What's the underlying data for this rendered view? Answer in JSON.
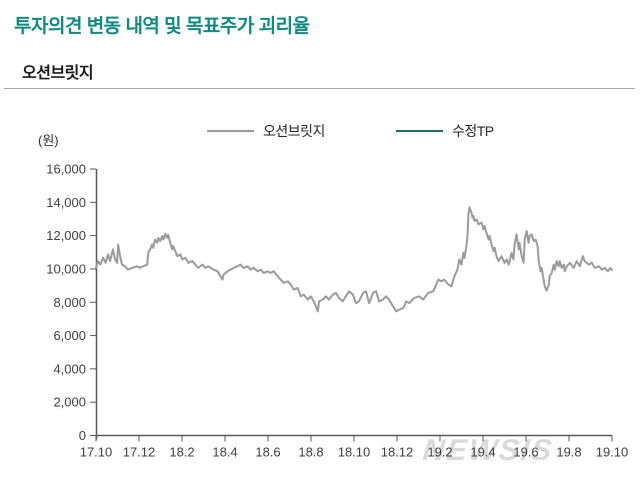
{
  "page": {
    "title": "투자의견 변동 내역 및 목표주가 괴리율",
    "subtitle": "오션브릿지",
    "watermark": "NEWSIS"
  },
  "colors": {
    "title_teal": "#0e8a80",
    "stock_line": "#9b9b9b",
    "tp_line": "#1e6f66",
    "axis": "#595959",
    "tick_label": "#404040",
    "watermark": "#dadada",
    "divider": "#a6a6a6"
  },
  "chart_data": {
    "type": "line",
    "unit_label": "(원)",
    "legend_position": "top",
    "grid": false,
    "legend": [
      {
        "label": "오션브릿지",
        "color": "#9b9b9b"
      },
      {
        "label": "수정TP",
        "color": "#1e6f66"
      }
    ],
    "y_ticks": [
      0,
      2000,
      4000,
      6000,
      8000,
      10000,
      12000,
      14000,
      16000
    ],
    "ylim": [
      0,
      16000
    ],
    "x_tick_labels": [
      "17.10",
      "17.12",
      "18.2",
      "18.4",
      "18.6",
      "18.8",
      "18.10",
      "18.12",
      "19.2",
      "19.4",
      "19.6",
      "19.8",
      "19.10"
    ],
    "x_months_span": 24,
    "series": [
      {
        "name": "오션브릿지",
        "color": "#9b9b9b",
        "points": [
          [
            0.0,
            10060
          ],
          [
            0.09,
            10470
          ],
          [
            0.2,
            10260
          ],
          [
            0.33,
            10670
          ],
          [
            0.45,
            10370
          ],
          [
            0.56,
            10870
          ],
          [
            0.65,
            10470
          ],
          [
            0.79,
            11170
          ],
          [
            0.89,
            10570
          ],
          [
            0.98,
            10370
          ],
          [
            1.03,
            11470
          ],
          [
            1.12,
            10770
          ],
          [
            1.21,
            10260
          ],
          [
            1.35,
            10160
          ],
          [
            1.49,
            9960
          ],
          [
            1.68,
            10060
          ],
          [
            1.91,
            10160
          ],
          [
            2.05,
            10060
          ],
          [
            2.19,
            10160
          ],
          [
            2.38,
            10260
          ],
          [
            2.43,
            10970
          ],
          [
            2.52,
            11170
          ],
          [
            2.61,
            11470
          ],
          [
            2.66,
            11270
          ],
          [
            2.75,
            11770
          ],
          [
            2.85,
            11570
          ],
          [
            2.9,
            11870
          ],
          [
            2.99,
            11670
          ],
          [
            3.08,
            11980
          ],
          [
            3.13,
            11770
          ],
          [
            3.22,
            12100
          ],
          [
            3.31,
            11870
          ],
          [
            3.36,
            12050
          ],
          [
            3.45,
            11570
          ],
          [
            3.55,
            11170
          ],
          [
            3.59,
            11370
          ],
          [
            3.69,
            11070
          ],
          [
            3.78,
            10770
          ],
          [
            3.92,
            10870
          ],
          [
            4.02,
            10570
          ],
          [
            4.16,
            10670
          ],
          [
            4.29,
            10370
          ],
          [
            4.48,
            10470
          ],
          [
            4.62,
            10260
          ],
          [
            4.76,
            10060
          ],
          [
            4.95,
            10260
          ],
          [
            5.09,
            10060
          ],
          [
            5.23,
            10160
          ],
          [
            5.46,
            9960
          ],
          [
            5.65,
            9860
          ],
          [
            5.79,
            9560
          ],
          [
            5.88,
            9360
          ],
          [
            5.93,
            9660
          ],
          [
            6.12,
            9860
          ],
          [
            6.26,
            9960
          ],
          [
            6.4,
            10060
          ],
          [
            6.58,
            10160
          ],
          [
            6.72,
            10260
          ],
          [
            6.86,
            10060
          ],
          [
            7.05,
            10160
          ],
          [
            7.19,
            9960
          ],
          [
            7.33,
            10060
          ],
          [
            7.52,
            9860
          ],
          [
            7.66,
            9960
          ],
          [
            7.8,
            9760
          ],
          [
            7.98,
            9860
          ],
          [
            8.12,
            9760
          ],
          [
            8.26,
            9860
          ],
          [
            8.45,
            9560
          ],
          [
            8.59,
            9360
          ],
          [
            8.73,
            9160
          ],
          [
            8.92,
            9260
          ],
          [
            9.06,
            9060
          ],
          [
            9.2,
            8760
          ],
          [
            9.38,
            8860
          ],
          [
            9.52,
            8360
          ],
          [
            9.66,
            8460
          ],
          [
            9.85,
            8160
          ],
          [
            9.99,
            8360
          ],
          [
            10.13,
            8050
          ],
          [
            10.32,
            7450
          ],
          [
            10.37,
            8050
          ],
          [
            10.55,
            8160
          ],
          [
            10.69,
            8360
          ],
          [
            10.83,
            8160
          ],
          [
            11.02,
            8460
          ],
          [
            11.16,
            8560
          ],
          [
            11.3,
            8260
          ],
          [
            11.48,
            8050
          ],
          [
            11.62,
            8360
          ],
          [
            11.77,
            8660
          ],
          [
            11.95,
            8460
          ],
          [
            12.09,
            7950
          ],
          [
            12.23,
            8050
          ],
          [
            12.42,
            8560
          ],
          [
            12.56,
            8660
          ],
          [
            12.7,
            7950
          ],
          [
            12.89,
            8560
          ],
          [
            13.03,
            8660
          ],
          [
            13.17,
            8050
          ],
          [
            13.35,
            8160
          ],
          [
            13.49,
            8360
          ],
          [
            13.63,
            8160
          ],
          [
            13.82,
            7750
          ],
          [
            13.96,
            7450
          ],
          [
            14.1,
            7550
          ],
          [
            14.29,
            7650
          ],
          [
            14.43,
            8050
          ],
          [
            14.57,
            7950
          ],
          [
            14.8,
            8260
          ],
          [
            15.03,
            8360
          ],
          [
            15.22,
            8160
          ],
          [
            15.45,
            8560
          ],
          [
            15.69,
            8660
          ],
          [
            15.92,
            9360
          ],
          [
            16.06,
            9260
          ],
          [
            16.2,
            9360
          ],
          [
            16.39,
            9060
          ],
          [
            16.53,
            8960
          ],
          [
            16.67,
            9560
          ],
          [
            16.81,
            9960
          ],
          [
            16.9,
            10570
          ],
          [
            17.0,
            10260
          ],
          [
            17.09,
            10970
          ],
          [
            17.14,
            10670
          ],
          [
            17.23,
            11370
          ],
          [
            17.28,
            12000
          ],
          [
            17.32,
            13280
          ],
          [
            17.37,
            13700
          ],
          [
            17.46,
            13390
          ],
          [
            17.51,
            13080
          ],
          [
            17.56,
            13180
          ],
          [
            17.6,
            12880
          ],
          [
            17.7,
            12980
          ],
          [
            17.79,
            12680
          ],
          [
            17.93,
            12780
          ],
          [
            18.02,
            12380
          ],
          [
            18.07,
            12580
          ],
          [
            18.16,
            12180
          ],
          [
            18.26,
            11770
          ],
          [
            18.3,
            11980
          ],
          [
            18.4,
            11470
          ],
          [
            18.49,
            11070
          ],
          [
            18.54,
            11270
          ],
          [
            18.63,
            10770
          ],
          [
            18.72,
            10470
          ],
          [
            18.86,
            10770
          ],
          [
            19.0,
            10370
          ],
          [
            19.1,
            10570
          ],
          [
            19.19,
            10260
          ],
          [
            19.24,
            10470
          ],
          [
            19.33,
            10970
          ],
          [
            19.42,
            10570
          ],
          [
            19.47,
            11470
          ],
          [
            19.56,
            12080
          ],
          [
            19.66,
            11170
          ],
          [
            19.7,
            11570
          ],
          [
            19.8,
            10770
          ],
          [
            19.89,
            10370
          ],
          [
            19.94,
            11770
          ],
          [
            20.03,
            12280
          ],
          [
            20.12,
            11570
          ],
          [
            20.17,
            11980
          ],
          [
            20.26,
            12080
          ],
          [
            20.36,
            11670
          ],
          [
            20.45,
            11770
          ],
          [
            20.54,
            11370
          ],
          [
            20.59,
            10470
          ],
          [
            20.68,
            9860
          ],
          [
            20.73,
            10060
          ],
          [
            20.82,
            9360
          ],
          [
            20.87,
            8960
          ],
          [
            20.96,
            8700
          ],
          [
            21.06,
            9060
          ],
          [
            21.1,
            9560
          ],
          [
            21.2,
            9760
          ],
          [
            21.29,
            10260
          ],
          [
            21.34,
            9960
          ],
          [
            21.43,
            10470
          ],
          [
            21.52,
            10160
          ],
          [
            21.57,
            10470
          ],
          [
            21.66,
            10060
          ],
          [
            21.76,
            10260
          ],
          [
            21.8,
            9860
          ],
          [
            21.9,
            10160
          ],
          [
            22.04,
            10370
          ],
          [
            22.22,
            10060
          ],
          [
            22.36,
            10470
          ],
          [
            22.5,
            10160
          ],
          [
            22.64,
            10770
          ],
          [
            22.73,
            10470
          ],
          [
            22.92,
            10260
          ],
          [
            23.06,
            10370
          ],
          [
            23.2,
            10060
          ],
          [
            23.39,
            10160
          ],
          [
            23.53,
            9960
          ],
          [
            23.67,
            10060
          ],
          [
            23.81,
            9860
          ],
          [
            23.91,
            10050
          ],
          [
            24.0,
            9940
          ]
        ]
      },
      {
        "name": "수정TP",
        "color": "#1e6f66",
        "points": []
      }
    ]
  }
}
